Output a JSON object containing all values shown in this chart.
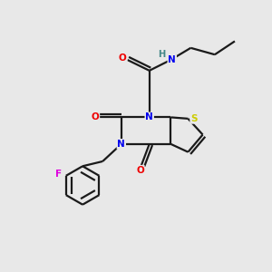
{
  "background_color": "#e8e8e8",
  "bond_color": "#1a1a1a",
  "atom_colors": {
    "N": "#0000ee",
    "O": "#ee0000",
    "S": "#cccc00",
    "F": "#dd00dd",
    "H": "#448888",
    "C": "#1a1a1a"
  },
  "figsize": [
    3.0,
    3.0
  ],
  "dpi": 100
}
